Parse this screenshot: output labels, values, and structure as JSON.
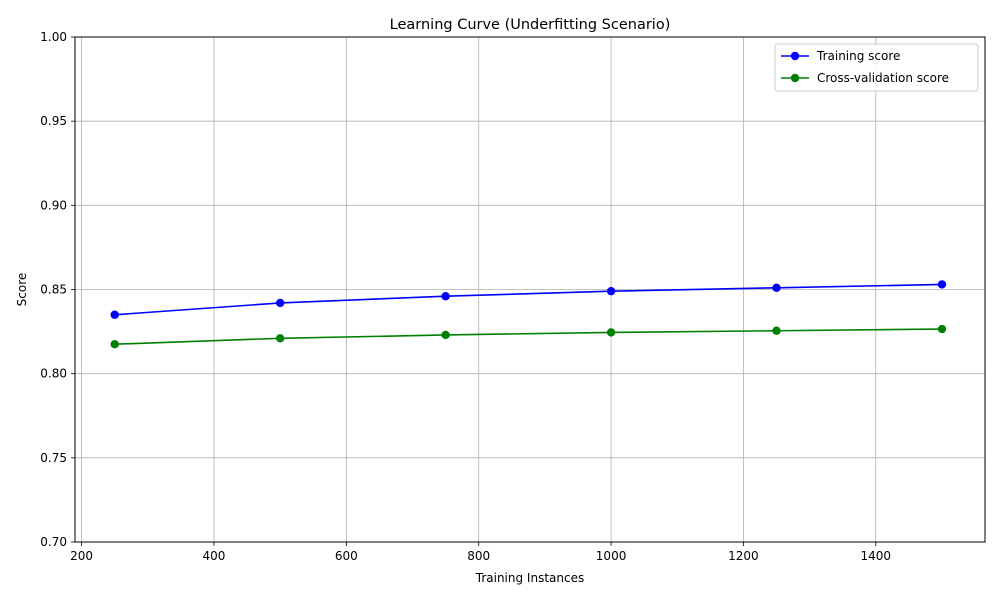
{
  "chart_data": {
    "type": "line",
    "title": "Learning Curve (Underfitting Scenario)",
    "xlabel": "Training Instances",
    "ylabel": "Score",
    "x": [
      250,
      500,
      750,
      1000,
      1250,
      1500
    ],
    "xlim": [
      190,
      1565
    ],
    "ylim": [
      0.7,
      1.0
    ],
    "xticks": [
      200,
      400,
      600,
      800,
      1000,
      1200,
      1400
    ],
    "yticks": [
      0.7,
      0.75,
      0.8,
      0.85,
      0.9,
      0.95,
      1.0
    ],
    "grid": true,
    "legend_position": "top-right",
    "series": [
      {
        "name": "Training score",
        "color": "#0000ff",
        "values": [
          0.835,
          0.842,
          0.846,
          0.849,
          0.851,
          0.853
        ]
      },
      {
        "name": "Cross-validation score",
        "color": "#008000",
        "values": [
          0.8175,
          0.821,
          0.823,
          0.8245,
          0.8255,
          0.8265
        ]
      }
    ]
  }
}
